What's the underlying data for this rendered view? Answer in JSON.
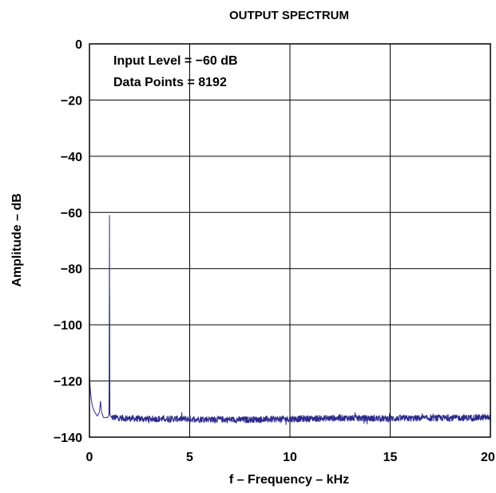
{
  "chart_data": {
    "type": "line",
    "title": "OUTPUT SPECTRUM",
    "xlabel": "f – Frequency – kHz",
    "ylabel": "Amplitude – dB",
    "xlim": [
      0,
      20
    ],
    "ylim": [
      -140,
      0
    ],
    "xticks": [
      0,
      5,
      10,
      15,
      20
    ],
    "xtick_labels": [
      "0",
      "5",
      "10",
      "15",
      "20"
    ],
    "yticks": [
      0,
      -20,
      -40,
      -60,
      -80,
      -100,
      -120,
      -140
    ],
    "ytick_labels": [
      "0",
      "−20",
      "−40",
      "−60",
      "−80",
      "−100",
      "−120",
      "−140"
    ],
    "grid": true,
    "annotations": [
      "Input Level = −60 dB",
      "Data Points = 8192"
    ],
    "series": [
      {
        "color": "#2b2b8c",
        "noise_floor_db": -133.5,
        "points": [
          [
            0.0,
            -117
          ],
          [
            0.03,
            -122
          ],
          [
            0.08,
            -126
          ],
          [
            0.15,
            -129
          ],
          [
            0.25,
            -131
          ],
          [
            0.4,
            -132.5
          ],
          [
            0.5,
            -131
          ],
          [
            0.55,
            -127
          ],
          [
            0.6,
            -131
          ],
          [
            0.7,
            -133
          ],
          [
            0.9,
            -133
          ],
          [
            0.98,
            -132
          ],
          [
            1.0,
            -61
          ],
          [
            1.02,
            -132
          ],
          [
            1.1,
            -133
          ],
          [
            2.5,
            -133.5
          ],
          [
            5.0,
            -133.5
          ],
          [
            7.5,
            -133.8
          ],
          [
            10.0,
            -133.5
          ],
          [
            12.5,
            -133.2
          ],
          [
            15.0,
            -133.4
          ],
          [
            17.5,
            -133.2
          ],
          [
            20.0,
            -133.0
          ]
        ]
      }
    ]
  },
  "colors": {
    "line": "#2b2b8c",
    "axes": "#000000",
    "grid": "#000000"
  }
}
